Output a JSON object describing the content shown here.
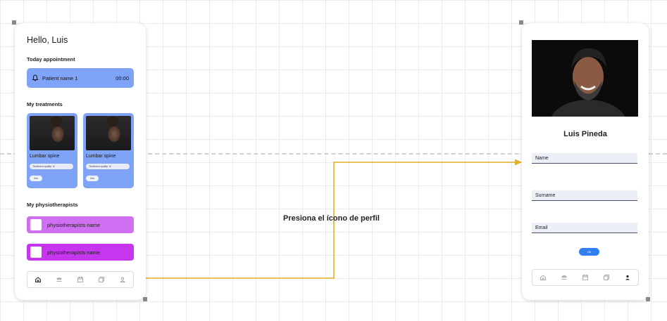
{
  "home_screen": {
    "greeting": "Hello, Luis",
    "today_appointment_label": "Today appointment",
    "appointment": {
      "patient": "Patient name 1",
      "time": "00:00"
    },
    "treatments_label": "My treatments",
    "treatments": [
      {
        "label": "Lumbar spine",
        "pill": "Treatment quality: 0/",
        "badge": "Info"
      },
      {
        "label": "Lumbar spine",
        "pill": "Treatment quality: 0/",
        "badge": "Info"
      }
    ],
    "physiotherapists_label": "My physiotherapists",
    "physiotherapists": [
      {
        "name": "physiotherapists name",
        "color": "#cf70f2"
      },
      {
        "name": "physiotherapists name",
        "color": "#c636ef"
      }
    ]
  },
  "annotation": "Presiona el ícono de perfil",
  "profile_screen": {
    "name": "Luis Pineda",
    "fields": [
      "Name",
      "Surname",
      "Email"
    ],
    "ok_label": "Ok"
  },
  "tabbar_icons": [
    "home-icon",
    "people-icon",
    "calendar-icon",
    "documents-icon",
    "profile-icon"
  ],
  "colors": {
    "accent_blue": "#7fa3f7",
    "arrow": "#e3b020",
    "button_blue": "#2f7ff0"
  }
}
